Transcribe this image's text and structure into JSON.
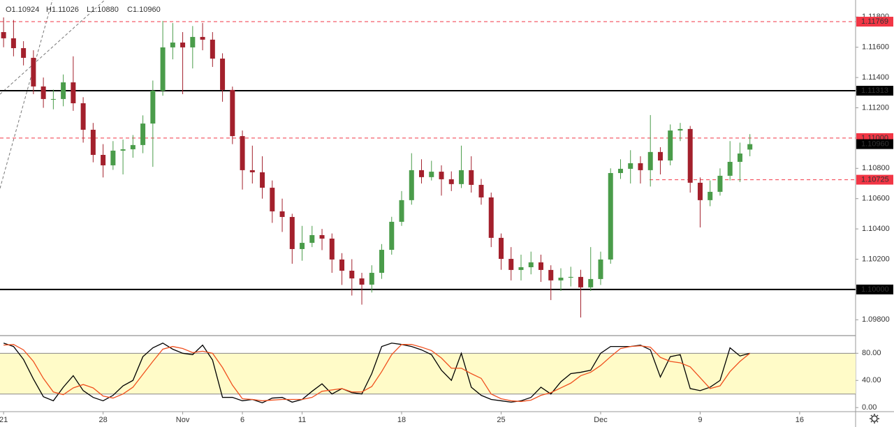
{
  "chart_data": [
    {
      "type": "candlestick",
      "legend": [
        "O1.10924",
        "H1.11026",
        "L1.10880",
        "C1.10960"
      ],
      "up_color": "#4a9c4a",
      "down_color": "#a3202c",
      "xlim": [
        -0.18,
        42.81
      ],
      "ylim": [
        1.097,
        1.11912
      ],
      "yticks": [
        {
          "value": 1.098,
          "label": "1.09800"
        },
        {
          "value": 1.102,
          "label": "1.10200"
        },
        {
          "value": 1.104,
          "label": "1.10400"
        },
        {
          "value": 1.106,
          "label": "1.10600"
        },
        {
          "value": 1.108,
          "label": "1.10800"
        },
        {
          "value": 1.112,
          "label": "1.11200"
        },
        {
          "value": 1.114,
          "label": "1.11400"
        },
        {
          "value": 1.116,
          "label": "1.11600"
        },
        {
          "value": 1.118,
          "label": "1.11800"
        }
      ],
      "levels": [
        {
          "value": 1.11769,
          "label": "1.11769",
          "color": "#f23645",
          "style": "dashed"
        },
        {
          "value": 1.11313,
          "label": "1.11313",
          "color": "#000000",
          "style": "solid"
        },
        {
          "value": 1.11,
          "label": "1.11000",
          "color": "#f23645",
          "style": "dashed"
        },
        {
          "value": 1.10725,
          "label": "1.10725",
          "color": "#f23645",
          "style": "dashed",
          "from": 32.46
        },
        {
          "value": 1.1,
          "label": "1.10000",
          "color": "#000000",
          "style": "solid"
        }
      ],
      "last_price": {
        "value": 1.1096,
        "label": "1.10960"
      },
      "x": [
        0,
        0.5,
        1,
        1.5,
        2,
        2.5,
        3,
        3.5,
        4,
        4.5,
        5,
        5.5,
        6,
        6.5,
        7,
        7.5,
        8,
        8.5,
        9,
        9.5,
        10,
        10.5,
        11,
        11.5,
        12,
        12.5,
        13,
        13.5,
        14,
        14.5,
        15,
        15.5,
        16,
        16.5,
        17,
        17.5,
        18,
        18.5,
        19,
        19.5,
        20,
        20.5,
        21,
        21.5,
        22,
        22.5,
        23,
        23.5,
        24,
        24.5,
        25,
        25.5,
        26,
        26.5,
        27,
        27.5,
        28,
        28.5,
        29,
        29.5,
        30,
        30.5,
        31,
        31.5,
        32,
        32.5,
        33,
        33.5,
        34,
        34.5,
        35,
        35.5,
        36,
        36.5,
        37,
        37.5
      ],
      "ohlc": [
        [
          1.117,
          1.11797,
          1.116,
          1.11659
        ],
        [
          1.11659,
          1.1178,
          1.1154,
          1.11594
        ],
        [
          1.11594,
          1.1164,
          1.1148,
          1.1153
        ],
        [
          1.1153,
          1.1158,
          1.1129,
          1.11341
        ],
        [
          1.11341,
          1.114,
          1.112,
          1.11258
        ],
        [
          1.11258,
          1.1132,
          1.1119,
          1.11258
        ],
        [
          1.11258,
          1.1142,
          1.1121,
          1.11368
        ],
        [
          1.11368,
          1.1154,
          1.1118,
          1.1123
        ],
        [
          1.1123,
          1.1127,
          1.1097,
          1.11055
        ],
        [
          1.11055,
          1.111,
          1.1084,
          1.10889
        ],
        [
          1.10889,
          1.1096,
          1.1074,
          1.1082
        ],
        [
          1.1082,
          1.1098,
          1.1079,
          1.10917
        ],
        [
          1.10917,
          1.1099,
          1.1076,
          1.10926
        ],
        [
          1.10926,
          1.1102,
          1.1087,
          1.10954
        ],
        [
          1.10954,
          1.1115,
          1.109,
          1.11096
        ],
        [
          1.11096,
          1.1138,
          1.1081,
          1.11313
        ],
        [
          1.11313,
          1.11774,
          1.1128,
          1.11599
        ],
        [
          1.11599,
          1.1176,
          1.1152,
          1.11631
        ],
        [
          1.11631,
          1.117,
          1.1129,
          1.11599
        ],
        [
          1.11599,
          1.1174,
          1.1146,
          1.11668
        ],
        [
          1.11668,
          1.1176,
          1.1158,
          1.1165
        ],
        [
          1.1165,
          1.117,
          1.1147,
          1.11525
        ],
        [
          1.11525,
          1.1156,
          1.1124,
          1.11318
        ],
        [
          1.11318,
          1.1134,
          1.1096,
          1.11013
        ],
        [
          1.11013,
          1.1105,
          1.1066,
          1.10788
        ],
        [
          1.10788,
          1.1095,
          1.107,
          1.10774
        ],
        [
          1.10774,
          1.1088,
          1.106,
          1.10672
        ],
        [
          1.10672,
          1.1072,
          1.1044,
          1.10516
        ],
        [
          1.10516,
          1.106,
          1.1038,
          1.10479
        ],
        [
          1.10479,
          1.105,
          1.1017,
          1.10267
        ],
        [
          1.10267,
          1.1042,
          1.1019,
          1.10308
        ],
        [
          1.10308,
          1.1042,
          1.1028,
          1.10359
        ],
        [
          1.10359,
          1.104,
          1.1026,
          1.10336
        ],
        [
          1.10336,
          1.1037,
          1.1011,
          1.10198
        ],
        [
          1.10198,
          1.1024,
          1.1003,
          1.10124
        ],
        [
          1.10124,
          1.102,
          1.0996,
          1.10073
        ],
        [
          1.10073,
          1.1011,
          1.099,
          1.10032
        ],
        [
          1.10032,
          1.1016,
          1.0998,
          1.1011
        ],
        [
          1.1011,
          1.103,
          1.1007,
          1.10262
        ],
        [
          1.10262,
          1.1048,
          1.1023,
          1.10447
        ],
        [
          1.10447,
          1.1065,
          1.1042,
          1.1059
        ],
        [
          1.1059,
          1.109,
          1.1056,
          1.10788
        ],
        [
          1.10788,
          1.1086,
          1.107,
          1.10742
        ],
        [
          1.10742,
          1.1085,
          1.1072,
          1.10778
        ],
        [
          1.10778,
          1.1082,
          1.1062,
          1.10728
        ],
        [
          1.10728,
          1.1078,
          1.1065,
          1.10696
        ],
        [
          1.10696,
          1.1095,
          1.1067,
          1.10788
        ],
        [
          1.10788,
          1.1088,
          1.1064,
          1.10691
        ],
        [
          1.10691,
          1.1073,
          1.1056,
          1.10608
        ],
        [
          1.10608,
          1.1064,
          1.1028,
          1.10341
        ],
        [
          1.10341,
          1.1037,
          1.1013,
          1.10202
        ],
        [
          1.10202,
          1.1028,
          1.1006,
          1.10129
        ],
        [
          1.10129,
          1.1023,
          1.1006,
          1.10147
        ],
        [
          1.10147,
          1.1025,
          1.101,
          1.10179
        ],
        [
          1.10179,
          1.1023,
          1.1005,
          1.10129
        ],
        [
          1.10129,
          1.1016,
          1.0993,
          1.1006
        ],
        [
          1.1006,
          1.1014,
          1.0999,
          1.10078
        ],
        [
          1.10078,
          1.1015,
          1.1002,
          1.10083
        ],
        [
          1.10083,
          1.1013,
          1.09815,
          1.10014
        ],
        [
          1.10014,
          1.1028,
          1.0999,
          1.10069
        ],
        [
          1.10069,
          1.1025,
          1.1003,
          1.10198
        ],
        [
          1.10198,
          1.108,
          1.1017,
          1.10769
        ],
        [
          1.10769,
          1.1086,
          1.1073,
          1.10797
        ],
        [
          1.10797,
          1.1092,
          1.107,
          1.10834
        ],
        [
          1.10834,
          1.1088,
          1.107,
          1.10788
        ],
        [
          1.10788,
          1.11152,
          1.1068,
          1.10908
        ],
        [
          1.10908,
          1.1094,
          1.1076,
          1.10852
        ],
        [
          1.10852,
          1.1109,
          1.1082,
          1.1105
        ],
        [
          1.1105,
          1.111,
          1.1098,
          1.1106
        ],
        [
          1.1106,
          1.1108,
          1.1064,
          1.10705
        ],
        [
          1.10705,
          1.1074,
          1.1041,
          1.1059
        ],
        [
          1.1059,
          1.1072,
          1.1055,
          1.10645
        ],
        [
          1.10645,
          1.108,
          1.1062,
          1.10751
        ],
        [
          1.10751,
          1.1098,
          1.1072,
          1.10843
        ],
        [
          1.10843,
          1.1097,
          1.1071,
          1.10898
        ],
        [
          1.10924,
          1.11026,
          1.1088,
          1.1096
        ]
      ]
    },
    {
      "type": "line",
      "xlim": [
        -0.18,
        42.81
      ],
      "ylim": [
        -6,
        105
      ],
      "yticks": [
        {
          "value": 0,
          "label": "0.00"
        },
        {
          "value": 40,
          "label": "40.00"
        },
        {
          "value": 80,
          "label": "80.00"
        }
      ],
      "band": [
        20,
        80
      ],
      "band_color": "#fffbc8",
      "xticks": [
        {
          "value": 0,
          "label": "21"
        },
        {
          "value": 5,
          "label": "28"
        },
        {
          "value": 9,
          "label": "Nov"
        },
        {
          "value": 12,
          "label": "6"
        },
        {
          "value": 15,
          "label": "11"
        },
        {
          "value": 20,
          "label": "18"
        },
        {
          "value": 25,
          "label": "25"
        },
        {
          "value": 30,
          "label": "Dec"
        },
        {
          "value": 35,
          "label": "9"
        },
        {
          "value": 40,
          "label": "16"
        }
      ],
      "x": [
        0,
        0.5,
        1,
        1.5,
        2,
        2.5,
        3,
        3.5,
        4,
        4.5,
        5,
        5.5,
        6,
        6.5,
        7,
        7.5,
        8,
        8.5,
        9,
        9.5,
        10,
        10.5,
        11,
        11.5,
        12,
        12.5,
        13,
        13.5,
        14,
        14.5,
        15,
        15.5,
        16,
        16.5,
        17,
        17.5,
        18,
        18.5,
        19,
        19.5,
        20,
        20.5,
        21,
        21.5,
        22,
        22.5,
        23,
        23.5,
        24,
        24.5,
        25,
        25.5,
        26,
        26.5,
        27,
        27.5,
        28,
        28.5,
        29,
        29.5,
        30,
        30.5,
        31,
        31.5,
        32,
        32.5,
        33,
        33.5,
        34,
        34.5,
        35,
        35.5,
        36,
        36.5,
        37,
        37.5
      ],
      "series": [
        {
          "color": "#000000",
          "values": [
            95,
            90,
            71,
            42,
            16,
            10,
            30,
            47,
            25,
            15,
            10,
            18,
            32,
            40,
            75,
            88,
            95,
            86,
            80,
            78,
            92,
            70,
            15,
            15,
            10,
            12,
            7,
            14,
            15,
            8,
            12,
            24,
            35,
            20,
            28,
            22,
            20,
            50,
            90,
            95,
            93,
            90,
            85,
            78,
            55,
            40,
            80,
            30,
            18,
            12,
            10,
            8,
            10,
            15,
            30,
            20,
            38,
            50,
            52,
            55,
            80,
            90,
            90,
            90,
            92,
            85,
            45,
            75,
            78,
            28,
            25,
            30,
            40,
            88,
            76,
            80
          ]
        },
        {
          "color": "#f0501e",
          "values": [
            92,
            93,
            85,
            68,
            43,
            23,
            19,
            29,
            34,
            29,
            17,
            14,
            20,
            30,
            49,
            68,
            86,
            90,
            87,
            81,
            83,
            80,
            59,
            33,
            13,
            12,
            10,
            11,
            12,
            12,
            12,
            15,
            24,
            26,
            28,
            23,
            23,
            31,
            53,
            78,
            93,
            93,
            89,
            84,
            73,
            58,
            58,
            50,
            43,
            20,
            13,
            10,
            9,
            11,
            18,
            22,
            29,
            36,
            47,
            52,
            62,
            75,
            87,
            90,
            91,
            89,
            74,
            68,
            66,
            60,
            44,
            28,
            32,
            53,
            68,
            80
          ]
        }
      ]
    }
  ]
}
